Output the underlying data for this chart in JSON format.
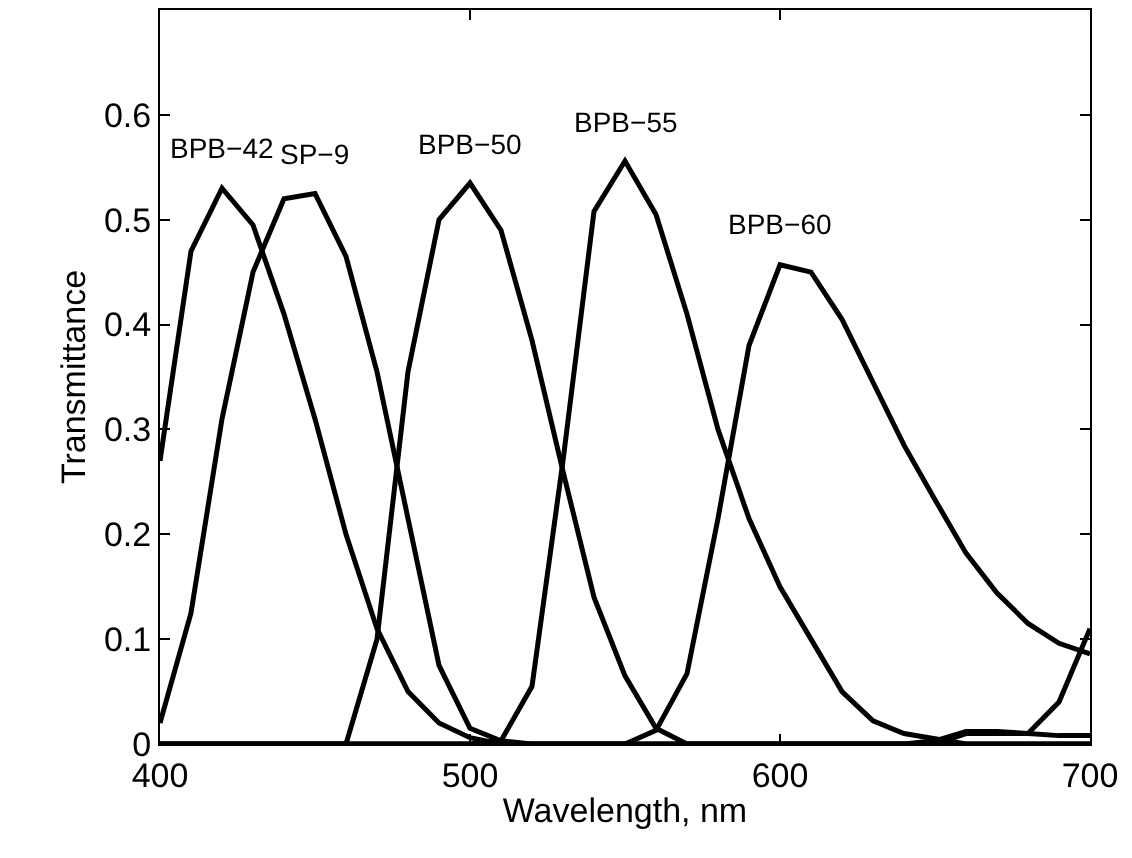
{
  "chart_data": {
    "type": "line",
    "xlabel": "Wavelength, nm",
    "ylabel": "Transmittance",
    "xlim": [
      400,
      700
    ],
    "xticks": [
      400,
      500,
      600,
      700
    ],
    "ylim": [
      0,
      0.7
    ],
    "yticks": [
      0,
      0.1,
      0.2,
      0.3,
      0.4,
      0.5,
      0.6
    ],
    "marker": "none",
    "line_style": "solid",
    "series": [
      {
        "name": "BPB−42",
        "color": "#000000",
        "x": [
          400,
          410,
          420,
          430,
          440,
          450,
          460,
          470,
          480,
          490,
          500,
          510,
          520,
          560,
          600,
          640,
          650,
          660,
          670,
          680,
          690,
          700
        ],
        "values": [
          0.27,
          0.47,
          0.53,
          0.495,
          0.41,
          0.31,
          0.2,
          0.11,
          0.05,
          0.02,
          0.006,
          0.0,
          0.0,
          0.0,
          0.0,
          0.0,
          0.0,
          0.01,
          0.01,
          0.01,
          0.04,
          0.11
        ]
      },
      {
        "name": "SP−9",
        "color": "#000000",
        "x": [
          400,
          410,
          420,
          430,
          440,
          450,
          460,
          470,
          480,
          490,
          500,
          510,
          520,
          560,
          600,
          640,
          650,
          660,
          670,
          680,
          690,
          700
        ],
        "values": [
          0.02,
          0.125,
          0.31,
          0.45,
          0.52,
          0.525,
          0.465,
          0.355,
          0.215,
          0.075,
          0.015,
          0.003,
          0.0,
          0.0,
          0.0,
          0.0,
          0.003,
          0.012,
          0.012,
          0.01,
          0.008,
          0.008
        ]
      },
      {
        "name": "BPB−50",
        "color": "#000000",
        "x": [
          400,
          450,
          460,
          470,
          480,
          490,
          500,
          510,
          520,
          530,
          540,
          550,
          560,
          570,
          600,
          650,
          700
        ],
        "values": [
          0.0,
          0.0,
          0.0,
          0.1,
          0.355,
          0.5,
          0.535,
          0.49,
          0.385,
          0.26,
          0.14,
          0.065,
          0.015,
          0.0,
          0.0,
          0.0,
          0.0
        ]
      },
      {
        "name": "BPB−55",
        "color": "#000000",
        "x": [
          400,
          500,
          510,
          520,
          530,
          540,
          550,
          560,
          570,
          580,
          590,
          600,
          610,
          620,
          630,
          640,
          650,
          660,
          700
        ],
        "values": [
          0.0,
          0.0,
          0.003,
          0.055,
          0.27,
          0.508,
          0.556,
          0.505,
          0.41,
          0.3,
          0.215,
          0.15,
          0.1,
          0.05,
          0.022,
          0.01,
          0.005,
          0.0,
          0.0
        ]
      },
      {
        "name": "BPB−60",
        "color": "#000000",
        "x": [
          400,
          500,
          550,
          560,
          570,
          580,
          590,
          600,
          610,
          620,
          630,
          640,
          650,
          660,
          670,
          680,
          690,
          700
        ],
        "values": [
          0.0,
          0.0,
          0.0,
          0.013,
          0.067,
          0.215,
          0.38,
          0.457,
          0.45,
          0.405,
          0.345,
          0.285,
          0.233,
          0.182,
          0.144,
          0.115,
          0.096,
          0.086
        ]
      }
    ]
  }
}
